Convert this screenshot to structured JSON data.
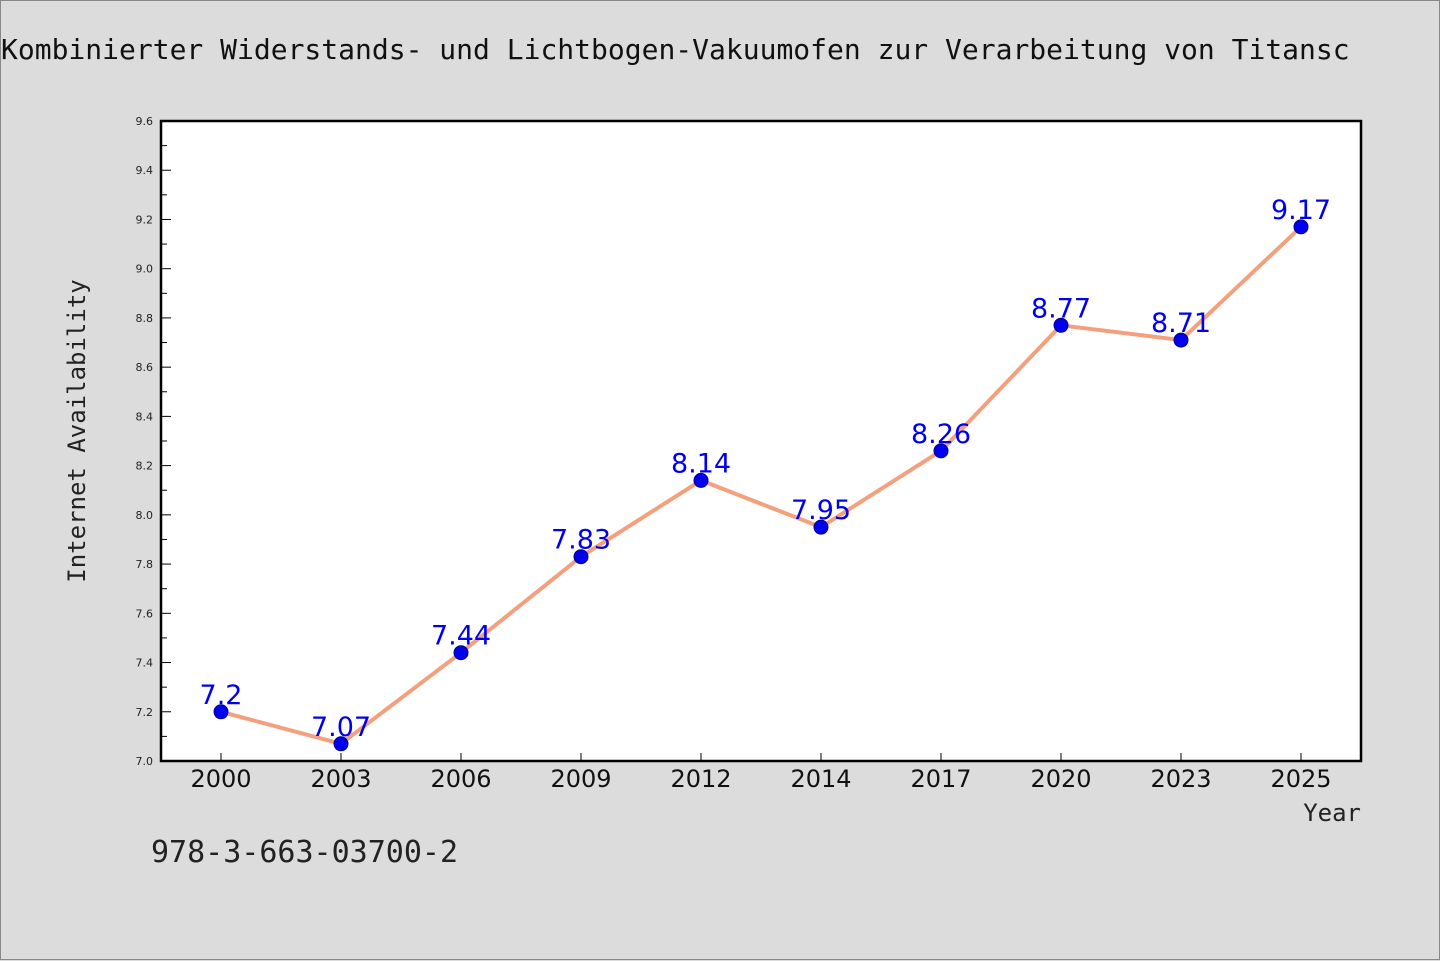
{
  "chart_data": {
    "type": "line",
    "title": "Kombinierter Widerstands- und Lichtbogen-Vakuumofen zur Verarbeitung von Titansc",
    "xlabel": "Year",
    "ylabel": "Internet Availability",
    "categories": [
      "2000",
      "2003",
      "2006",
      "2009",
      "2012",
      "2014",
      "2017",
      "2020",
      "2023",
      "2025"
    ],
    "series": [
      {
        "values": [
          7.2,
          7.07,
          7.44,
          7.83,
          8.14,
          7.95,
          8.26,
          8.77,
          8.71,
          9.17
        ],
        "data_labels": [
          "7.2",
          "7.07",
          "7.44",
          "7.83",
          "8.14",
          "7.95",
          "8.26",
          "8.77",
          "8.71",
          "9.17"
        ]
      }
    ],
    "ylim": [
      7.0,
      9.6
    ],
    "yticks": [
      "7.0",
      "7.2",
      "7.4",
      "7.6",
      "7.8",
      "8.0",
      "8.2",
      "8.4",
      "8.6",
      "8.8",
      "9.0",
      "9.2",
      "9.4",
      "9.6"
    ],
    "grid": false,
    "legend": "none",
    "colors": {
      "line": "#f4a07c",
      "marker": "#0000ee",
      "marker_edge": "#00008b",
      "data_label": "#0000ee",
      "background": "#dcdcdc",
      "plot_background": "#ffffff"
    }
  },
  "footer": {
    "isbn": "978-3-663-03700-2"
  }
}
